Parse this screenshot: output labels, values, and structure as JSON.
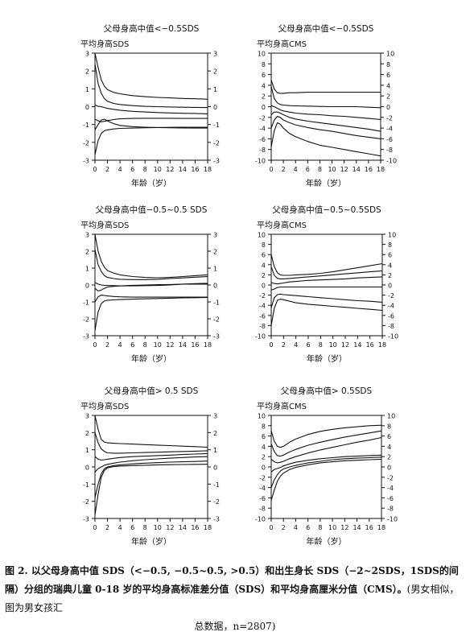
{
  "x_axis_label": "年龄（岁）",
  "x_tick_labels": [
    "0",
    "2",
    "4",
    "6",
    "8",
    "10",
    "12",
    "14",
    "16",
    "18"
  ],
  "caption": {
    "bold_text": "图 2. 以父母身高中值 SDS（<−0.5, −0.5~0.5, >0.5）和出生身长 SDS（−2~2SDS，1SDS的间隔）分组的瑞典儿童 0-18 岁的平均身高标准差分值（SDS）和平均身高厘米分值（CMS）。",
    "normal_text": "(男女相似，图为男女孩汇",
    "last_line": "总数据，n=2807)"
  },
  "chart_data": [
    {
      "type": "line",
      "title": "父母身高中值<−0.5SDS",
      "ylabel": "平均身高SDS",
      "xlabel": "年龄（岁）",
      "xlim": [
        0,
        18
      ],
      "ylim": [
        -3,
        3
      ],
      "yticks": [
        -3,
        -2,
        -1,
        0,
        1,
        2,
        3
      ],
      "x": [
        0,
        0.5,
        1,
        1.5,
        2,
        3,
        4,
        6,
        8,
        10,
        12,
        14,
        16,
        18
      ],
      "series": [
        {
          "values": [
            3.0,
            2.2,
            1.5,
            1.15,
            0.95,
            0.8,
            0.72,
            0.62,
            0.56,
            0.52,
            0.49,
            0.46,
            0.44,
            0.42
          ]
        },
        {
          "values": [
            2.4,
            1.3,
            0.75,
            0.45,
            0.3,
            0.18,
            0.12,
            0.06,
            0.02,
            0.0,
            -0.02,
            -0.03,
            -0.04,
            -0.05
          ]
        },
        {
          "values": [
            0.1,
            0.02,
            0.0,
            -0.05,
            -0.1,
            -0.15,
            -0.2,
            -0.26,
            -0.3,
            -0.33,
            -0.35,
            -0.37,
            -0.38,
            -0.4
          ]
        },
        {
          "values": [
            -0.7,
            -0.8,
            -0.85,
            -0.82,
            -0.78,
            -0.72,
            -0.68,
            -0.66,
            -0.65,
            -0.65,
            -0.65,
            -0.66,
            -0.66,
            -0.66
          ]
        },
        {
          "values": [
            -1.3,
            -1.0,
            -0.75,
            -0.7,
            -0.8,
            -0.95,
            -1.05,
            -1.12,
            -1.15,
            -1.17,
            -1.18,
            -1.19,
            -1.2,
            -1.2
          ]
        },
        {
          "values": [
            -2.7,
            -1.9,
            -1.5,
            -1.35,
            -1.3,
            -1.25,
            -1.22,
            -1.2,
            -1.18,
            -1.17,
            -1.16,
            -1.15,
            -1.15,
            -1.15
          ]
        }
      ]
    },
    {
      "type": "line",
      "title": "父母身高中值<−0.5SDS",
      "ylabel": "平均身高CMS",
      "xlabel": "年龄（岁）",
      "xlim": [
        0,
        18
      ],
      "ylim": [
        -10,
        10
      ],
      "yticks": [
        -10,
        -8,
        -6,
        -4,
        -2,
        0,
        2,
        4,
        6,
        8,
        10
      ],
      "x": [
        0,
        0.5,
        1,
        1.5,
        2,
        3,
        4,
        6,
        8,
        10,
        12,
        14,
        16,
        18
      ],
      "series": [
        {
          "values": [
            5.0,
            3.3,
            2.6,
            2.5,
            2.5,
            2.6,
            2.6,
            2.7,
            2.7,
            2.7,
            2.7,
            2.7,
            2.7,
            2.7
          ]
        },
        {
          "values": [
            3.8,
            1.5,
            0.7,
            0.4,
            0.3,
            0.2,
            0.15,
            0.1,
            0.05,
            0.0,
            0.0,
            0.0,
            -0.1,
            -0.2
          ]
        },
        {
          "values": [
            0.2,
            0.0,
            -0.3,
            -0.6,
            -0.8,
            -1.0,
            -1.2,
            -1.4,
            -1.5,
            -1.7,
            -1.8,
            -2.0,
            -2.2,
            -2.4
          ]
        },
        {
          "values": [
            -1.5,
            -1.0,
            -1.0,
            -1.2,
            -1.5,
            -2.0,
            -2.3,
            -2.7,
            -3.0,
            -3.3,
            -3.6,
            -3.9,
            -4.2,
            -4.6
          ]
        },
        {
          "values": [
            -4.0,
            -2.5,
            -1.8,
            -2.0,
            -2.5,
            -3.0,
            -3.4,
            -3.9,
            -4.3,
            -4.6,
            -5.0,
            -5.4,
            -5.7,
            -6.0
          ]
        },
        {
          "values": [
            -7.5,
            -4.5,
            -3.0,
            -3.3,
            -4.0,
            -5.0,
            -5.6,
            -6.5,
            -7.2,
            -7.6,
            -8.0,
            -8.4,
            -8.8,
            -9.2
          ]
        }
      ]
    },
    {
      "type": "line",
      "title": "父母身高中值−0.5~0.5 SDS",
      "ylabel": "平均身高SDS",
      "xlabel": "年龄（岁）",
      "xlim": [
        0,
        18
      ],
      "ylim": [
        -3,
        3
      ],
      "yticks": [
        -3,
        -2,
        -1,
        0,
        1,
        2,
        3
      ],
      "x": [
        0,
        0.5,
        1,
        1.5,
        2,
        3,
        4,
        6,
        8,
        10,
        12,
        14,
        16,
        18
      ],
      "series": [
        {
          "values": [
            3.0,
            2.0,
            1.4,
            1.05,
            0.85,
            0.7,
            0.6,
            0.5,
            0.45,
            0.43,
            0.45,
            0.5,
            0.55,
            0.6
          ]
        },
        {
          "values": [
            2.1,
            1.2,
            0.8,
            0.55,
            0.45,
            0.38,
            0.34,
            0.32,
            0.32,
            0.34,
            0.38,
            0.42,
            0.46,
            0.5
          ]
        },
        {
          "values": [
            0.15,
            0.05,
            0.0,
            -0.02,
            -0.03,
            -0.04,
            -0.05,
            -0.05,
            -0.04,
            -0.03,
            0.0,
            0.05,
            0.08,
            0.1
          ]
        },
        {
          "values": [
            -0.2,
            -0.35,
            -0.3,
            -0.2,
            -0.12,
            -0.08,
            -0.05,
            -0.02,
            0.0,
            0.02,
            0.03,
            0.05,
            0.05,
            0.05
          ]
        },
        {
          "values": [
            -1.0,
            -0.7,
            -0.6,
            -0.62,
            -0.65,
            -0.68,
            -0.7,
            -0.72,
            -0.72,
            -0.72,
            -0.72,
            -0.72,
            -0.72,
            -0.72
          ]
        },
        {
          "values": [
            -2.7,
            -1.6,
            -1.1,
            -0.95,
            -0.9,
            -0.88,
            -0.86,
            -0.84,
            -0.82,
            -0.8,
            -0.78,
            -0.76,
            -0.75,
            -0.74
          ]
        }
      ]
    },
    {
      "type": "line",
      "title": "父母身高中值−0.5~0.5SDS",
      "ylabel": "平均身高CMS",
      "xlabel": "年龄（岁）",
      "xlim": [
        0,
        18
      ],
      "ylim": [
        -10,
        10
      ],
      "yticks": [
        -10,
        -8,
        -6,
        -4,
        -2,
        0,
        2,
        4,
        6,
        8,
        10
      ],
      "x": [
        0,
        0.5,
        1,
        1.5,
        2,
        3,
        4,
        6,
        8,
        10,
        12,
        14,
        16,
        18
      ],
      "series": [
        {
          "values": [
            6.0,
            3.6,
            2.4,
            2.0,
            1.9,
            1.9,
            2.0,
            2.1,
            2.3,
            2.6,
            3.0,
            3.4,
            3.8,
            4.2
          ]
        },
        {
          "values": [
            3.6,
            1.9,
            1.3,
            1.2,
            1.2,
            1.3,
            1.4,
            1.6,
            1.8,
            2.0,
            2.2,
            2.4,
            2.6,
            2.8
          ]
        },
        {
          "values": [
            0.5,
            0.3,
            0.2,
            0.3,
            0.4,
            0.6,
            0.7,
            0.9,
            1.0,
            1.1,
            1.2,
            1.4,
            1.5,
            1.6
          ]
        },
        {
          "values": [
            -1.0,
            -0.8,
            -0.5,
            -0.4,
            -0.4,
            -0.4,
            -0.4,
            -0.4,
            -0.4,
            -0.4,
            -0.4,
            -0.4,
            -0.4,
            -0.4
          ]
        },
        {
          "values": [
            -4.5,
            -2.5,
            -1.9,
            -1.8,
            -1.9,
            -2.0,
            -2.1,
            -2.3,
            -2.5,
            -2.7,
            -2.9,
            -3.1,
            -3.2,
            -3.4
          ]
        },
        {
          "values": [
            -8.0,
            -4.6,
            -3.0,
            -2.8,
            -2.9,
            -3.2,
            -3.5,
            -3.8,
            -4.0,
            -4.2,
            -4.4,
            -4.6,
            -4.8,
            -5.0
          ]
        }
      ]
    },
    {
      "type": "line",
      "title": "父母身高中值> 0.5 SDS",
      "ylabel": "平均身高SDS",
      "xlabel": "年龄（岁）",
      "xlim": [
        0,
        18
      ],
      "ylim": [
        -3,
        3
      ],
      "yticks": [
        -3,
        -2,
        -1,
        0,
        1,
        2,
        3
      ],
      "x": [
        0,
        0.5,
        1,
        1.5,
        2,
        3,
        4,
        6,
        8,
        10,
        12,
        14,
        16,
        18
      ],
      "series": [
        {
          "values": [
            3.0,
            2.2,
            1.6,
            1.45,
            1.4,
            1.38,
            1.36,
            1.33,
            1.3,
            1.27,
            1.24,
            1.21,
            1.18,
            1.15
          ]
        },
        {
          "values": [
            2.0,
            1.4,
            1.05,
            0.9,
            0.82,
            0.8,
            0.8,
            0.82,
            0.84,
            0.86,
            0.88,
            0.9,
            0.92,
            0.94
          ]
        },
        {
          "values": [
            0.6,
            0.45,
            0.4,
            0.42,
            0.45,
            0.5,
            0.55,
            0.6,
            0.63,
            0.66,
            0.69,
            0.72,
            0.75,
            0.78
          ]
        },
        {
          "values": [
            -0.3,
            -0.1,
            0.0,
            0.1,
            0.15,
            0.22,
            0.28,
            0.36,
            0.42,
            0.47,
            0.51,
            0.55,
            0.58,
            0.6
          ]
        },
        {
          "values": [
            -1.8,
            -1.0,
            -0.4,
            -0.1,
            0.0,
            0.08,
            0.12,
            0.18,
            0.22,
            0.25,
            0.28,
            0.3,
            0.32,
            0.34
          ]
        },
        {
          "values": [
            -2.8,
            -1.6,
            -0.6,
            -0.2,
            -0.05,
            0.02,
            0.05,
            0.08,
            0.1,
            0.12,
            0.13,
            0.14,
            0.15,
            0.16
          ]
        }
      ]
    },
    {
      "type": "line",
      "title": "父母身高中值> 0.5SDS",
      "ylabel": "平均身高CMS",
      "xlabel": "年龄（岁）",
      "xlim": [
        0,
        18
      ],
      "ylim": [
        -10,
        10
      ],
      "yticks": [
        -10,
        -8,
        -6,
        -4,
        -2,
        0,
        2,
        4,
        6,
        8,
        10
      ],
      "x": [
        0,
        0.5,
        1,
        1.5,
        2,
        3,
        4,
        6,
        8,
        10,
        12,
        14,
        16,
        18
      ],
      "series": [
        {
          "values": [
            7.0,
            5.0,
            4.0,
            3.8,
            4.0,
            4.8,
            5.4,
            6.3,
            6.9,
            7.3,
            7.6,
            7.8,
            8.0,
            8.1
          ]
        },
        {
          "values": [
            4.5,
            3.0,
            2.2,
            2.1,
            2.3,
            2.9,
            3.4,
            4.2,
            4.8,
            5.3,
            5.8,
            6.2,
            6.6,
            7.0
          ]
        },
        {
          "values": [
            1.5,
            1.0,
            0.8,
            0.9,
            1.1,
            1.6,
            2.0,
            2.7,
            3.3,
            3.8,
            4.3,
            4.8,
            5.2,
            5.7
          ]
        },
        {
          "values": [
            -1.0,
            -0.5,
            -0.3,
            -0.1,
            0.2,
            0.6,
            0.9,
            1.3,
            1.6,
            1.8,
            2.0,
            2.1,
            2.2,
            2.3
          ]
        },
        {
          "values": [
            -4.0,
            -2.5,
            -1.5,
            -0.8,
            -0.4,
            0.0,
            0.3,
            0.8,
            1.1,
            1.4,
            1.6,
            1.7,
            1.8,
            1.9
          ]
        },
        {
          "values": [
            -6.5,
            -4.5,
            -2.8,
            -1.8,
            -1.2,
            -0.5,
            -0.1,
            0.4,
            0.8,
            1.0,
            1.2,
            1.3,
            1.4,
            1.5
          ]
        }
      ]
    }
  ]
}
